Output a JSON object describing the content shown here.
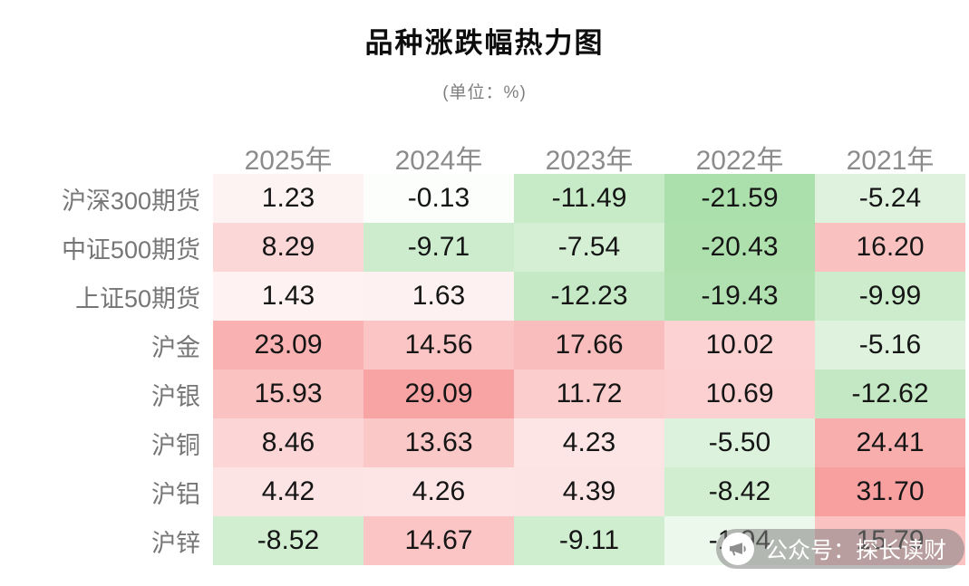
{
  "watermark": {
    "text": "公众号：探长读财",
    "icon": "megaphone-icon"
  },
  "chart_data": {
    "type": "heatmap",
    "title": "品种涨跌幅热力图",
    "unit_label": "(单位：%)",
    "legend": "none",
    "columns": [
      "2025年",
      "2024年",
      "2023年",
      "2022年",
      "2021年"
    ],
    "rows": [
      "沪深300期货",
      "中证500期货",
      "上证50期货",
      "沪金",
      "沪银",
      "沪铜",
      "沪铝",
      "沪锌"
    ],
    "values": [
      [
        1.23,
        -0.13,
        -11.49,
        -21.59,
        -5.24
      ],
      [
        8.29,
        -9.71,
        -7.54,
        -20.43,
        16.2
      ],
      [
        1.43,
        1.63,
        -12.23,
        -19.43,
        -9.99
      ],
      [
        23.09,
        14.56,
        17.66,
        10.02,
        -5.16
      ],
      [
        15.93,
        29.09,
        11.72,
        10.69,
        -12.62
      ],
      [
        8.46,
        13.63,
        4.23,
        -5.5,
        24.41
      ],
      [
        4.42,
        4.26,
        4.39,
        -8.42,
        31.7
      ],
      [
        -8.52,
        14.67,
        -9.11,
        -1.94,
        15.79
      ]
    ],
    "value_format": "2dp",
    "colors": {
      "positive_max": "#f89f9f",
      "negative_max": "#abdfab",
      "neutral": "#ffffff",
      "value_text": "#151515",
      "header_text": "#8b8b8b",
      "row_label_text": "#767676"
    }
  }
}
